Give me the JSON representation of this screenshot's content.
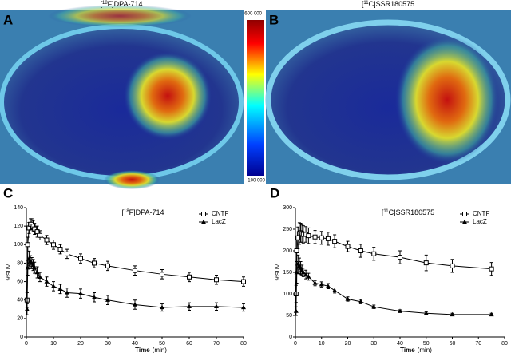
{
  "images": [
    {
      "label": "A",
      "title": {
        "pre": "[",
        "sup": "18",
        "post": "F]DPA-714"
      }
    },
    {
      "label": "B",
      "title": {
        "pre": "[",
        "sup": "11",
        "post": "C]SSR180575"
      }
    }
  ],
  "colorbar": {
    "max_label": "600 000",
    "min_label": "100 000"
  },
  "chart_data": [
    {
      "type": "line",
      "label": "C",
      "title": {
        "pre": "[",
        "sup": "18",
        "post": "F]DPA-714"
      },
      "ylabel": "%SUV",
      "xlabel": {
        "main": "Time",
        "unit": "(min)"
      },
      "x": [
        0.25,
        0.5,
        1,
        1.5,
        2,
        2.5,
        3,
        4,
        5,
        7.5,
        10,
        12.5,
        15,
        20,
        25,
        30,
        40,
        50,
        60,
        70,
        80
      ],
      "series": [
        {
          "name": "CNTF",
          "color": "#000000",
          "marker": "square-open",
          "values": [
            40,
            100,
            118,
            122,
            122,
            120,
            117,
            114,
            110,
            105,
            100,
            95,
            90,
            85,
            80,
            77,
            72,
            68,
            65,
            62,
            60
          ],
          "errors": [
            8,
            8,
            6,
            6,
            6,
            6,
            6,
            6,
            5,
            5,
            5,
            5,
            5,
            5,
            5,
            5,
            5,
            5,
            5,
            5,
            5
          ]
        },
        {
          "name": "LacZ",
          "color": "#000000",
          "marker": "triangle",
          "values": [
            30,
            75,
            85,
            82,
            80,
            78,
            75,
            70,
            65,
            60,
            55,
            52,
            48,
            47,
            43,
            40,
            35,
            32,
            33,
            33,
            32
          ],
          "errors": [
            6,
            8,
            8,
            6,
            6,
            6,
            6,
            6,
            5,
            5,
            5,
            5,
            5,
            5,
            5,
            5,
            5,
            4,
            4,
            4,
            4
          ]
        }
      ],
      "xlim": [
        0,
        80
      ],
      "xticks": [
        0,
        10,
        20,
        30,
        40,
        50,
        60,
        70,
        80
      ],
      "ylim": [
        0,
        140
      ],
      "yticks": [
        0,
        20,
        40,
        60,
        80,
        100,
        120,
        140
      ],
      "legend": "upper right"
    },
    {
      "type": "line",
      "label": "D",
      "title": {
        "pre": "[",
        "sup": "11",
        "post": "C]SSR180575"
      },
      "ylabel": "%SUV",
      "xlabel": {
        "main": "Time",
        "unit": "(min)"
      },
      "x": [
        0.25,
        0.5,
        1,
        1.5,
        2,
        2.5,
        3,
        4,
        5,
        7.5,
        10,
        12.5,
        15,
        20,
        25,
        30,
        40,
        50,
        60,
        75
      ],
      "series": [
        {
          "name": "CNTF",
          "color": "#000000",
          "marker": "square-open",
          "values": [
            100,
            200,
            230,
            240,
            242,
            240,
            238,
            238,
            235,
            232,
            230,
            228,
            222,
            210,
            200,
            193,
            185,
            172,
            165,
            158
          ],
          "errors": [
            20,
            25,
            25,
            25,
            22,
            20,
            20,
            18,
            18,
            15,
            15,
            15,
            15,
            12,
            15,
            15,
            15,
            18,
            15,
            15
          ]
        },
        {
          "name": "LacZ",
          "color": "#000000",
          "marker": "triangle",
          "values": [
            60,
            150,
            170,
            165,
            160,
            155,
            150,
            145,
            140,
            125,
            122,
            118,
            108,
            88,
            82,
            70,
            60,
            55,
            52,
            52
          ],
          "errors": [
            10,
            25,
            20,
            18,
            15,
            12,
            10,
            10,
            8,
            6,
            6,
            6,
            6,
            5,
            5,
            4,
            3,
            3,
            3,
            3
          ]
        }
      ],
      "xlim": [
        0,
        80
      ],
      "xticks": [
        0,
        10,
        20,
        30,
        40,
        50,
        60,
        70,
        80
      ],
      "ylim": [
        0,
        300
      ],
      "yticks": [
        0,
        50,
        100,
        150,
        200,
        250,
        300
      ],
      "legend": "upper right"
    }
  ]
}
